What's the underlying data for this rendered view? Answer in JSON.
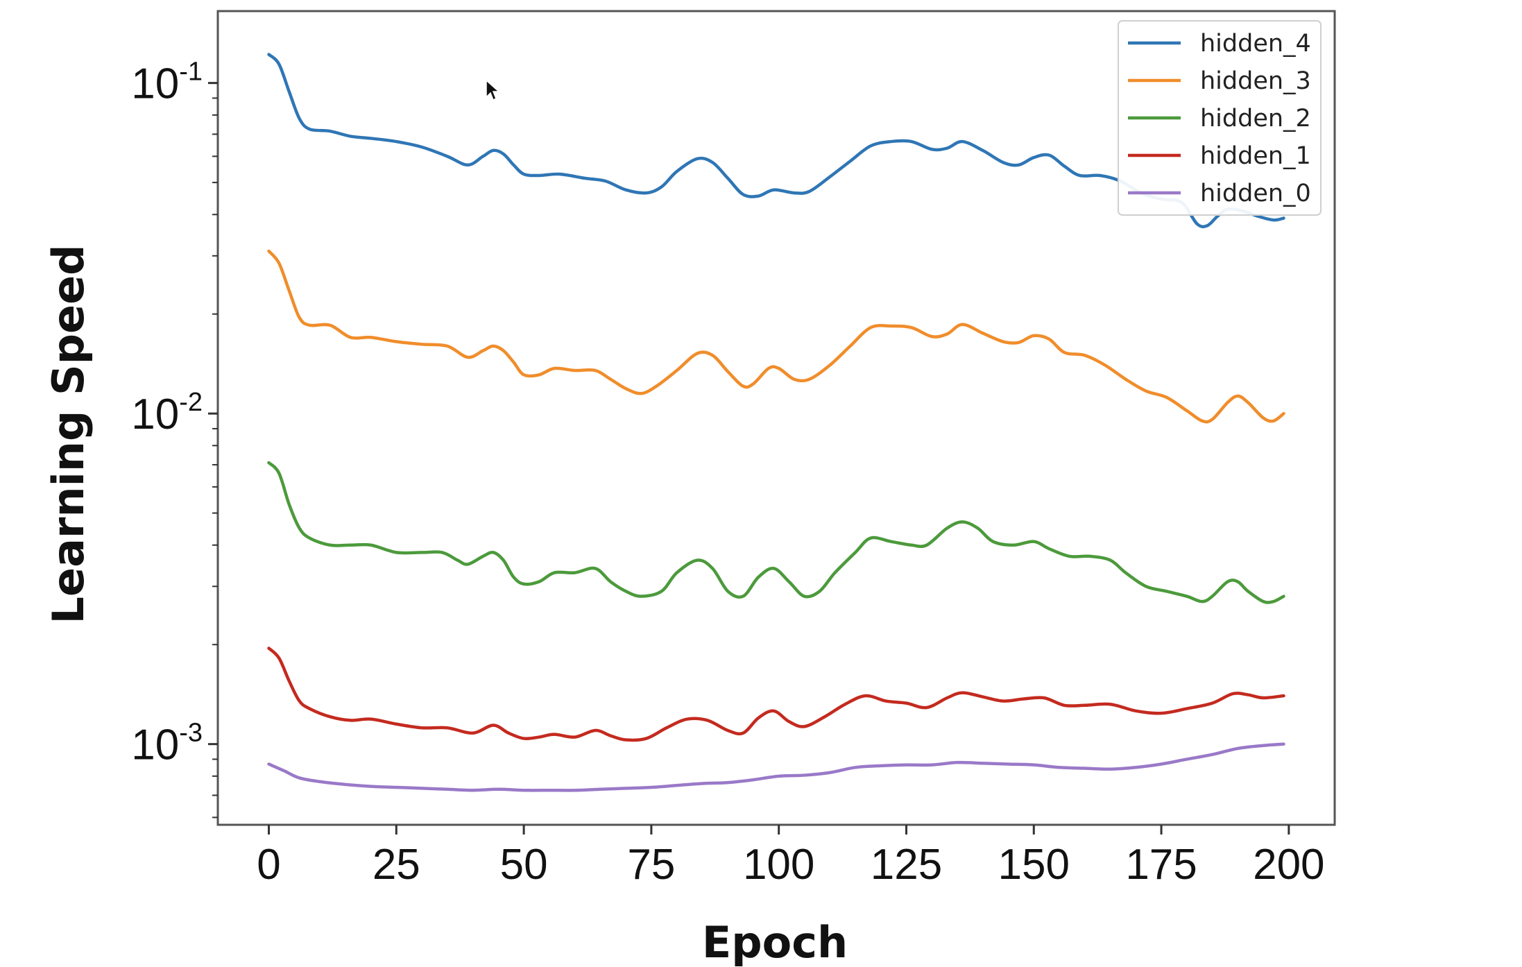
{
  "chart_data": {
    "type": "line",
    "xlabel": "Epoch",
    "ylabel": "Learning Speed",
    "xlim": [
      -10,
      209
    ],
    "ylim": [
      0.00057,
      0.165
    ],
    "yscale": "log",
    "x_ticks": [
      0,
      25,
      50,
      75,
      100,
      125,
      150,
      175,
      200
    ],
    "x_tick_labels": [
      "0",
      "25",
      "50",
      "75",
      "100",
      "125",
      "150",
      "175",
      "200"
    ],
    "y_ticks": [
      {
        "value": 0.1,
        "base": "10",
        "exp": "-1"
      },
      {
        "value": 0.01,
        "base": "10",
        "exp": "-2"
      },
      {
        "value": 0.001,
        "base": "10",
        "exp": "-3"
      }
    ],
    "legend_position": "top-right",
    "grid": false,
    "cursor_visible": true,
    "series": [
      {
        "name": "hidden_4",
        "color": "#2f76b5",
        "points": [
          [
            0,
            0.122
          ],
          [
            2,
            0.114
          ],
          [
            4,
            0.094
          ],
          [
            6,
            0.078
          ],
          [
            8,
            0.0725
          ],
          [
            12,
            0.0715
          ],
          [
            16,
            0.069
          ],
          [
            20,
            0.068
          ],
          [
            25,
            0.0665
          ],
          [
            30,
            0.064
          ],
          [
            35,
            0.06
          ],
          [
            39,
            0.0565
          ],
          [
            42,
            0.06
          ],
          [
            44,
            0.0625
          ],
          [
            46,
            0.061
          ],
          [
            48,
            0.0565
          ],
          [
            50,
            0.053
          ],
          [
            53,
            0.0525
          ],
          [
            57,
            0.053
          ],
          [
            62,
            0.0515
          ],
          [
            66,
            0.0505
          ],
          [
            70,
            0.0475
          ],
          [
            74,
            0.0465
          ],
          [
            77,
            0.0485
          ],
          [
            80,
            0.054
          ],
          [
            84,
            0.059
          ],
          [
            87,
            0.0575
          ],
          [
            90,
            0.0515
          ],
          [
            93,
            0.046
          ],
          [
            96,
            0.0455
          ],
          [
            99,
            0.0475
          ],
          [
            103,
            0.0465
          ],
          [
            106,
            0.047
          ],
          [
            110,
            0.052
          ],
          [
            114,
            0.058
          ],
          [
            118,
            0.0645
          ],
          [
            122,
            0.0665
          ],
          [
            126,
            0.0665
          ],
          [
            130,
            0.063
          ],
          [
            133,
            0.0635
          ],
          [
            136,
            0.0665
          ],
          [
            140,
            0.0625
          ],
          [
            144,
            0.0575
          ],
          [
            147,
            0.0565
          ],
          [
            150,
            0.0595
          ],
          [
            153,
            0.0605
          ],
          [
            156,
            0.056
          ],
          [
            159,
            0.0525
          ],
          [
            163,
            0.0525
          ],
          [
            167,
            0.0505
          ],
          [
            171,
            0.0465
          ],
          [
            175,
            0.0445
          ],
          [
            179,
            0.0435
          ],
          [
            182,
            0.0375
          ],
          [
            184,
            0.037
          ],
          [
            186,
            0.0395
          ],
          [
            188,
            0.0415
          ],
          [
            191,
            0.041
          ],
          [
            194,
            0.0395
          ],
          [
            197,
            0.0385
          ],
          [
            199,
            0.039
          ]
        ]
      },
      {
        "name": "hidden_3",
        "color": "#f08d2b",
        "points": [
          [
            0,
            0.031
          ],
          [
            2,
            0.0285
          ],
          [
            4,
            0.0235
          ],
          [
            6,
            0.0195
          ],
          [
            8,
            0.0185
          ],
          [
            12,
            0.0185
          ],
          [
            16,
            0.017
          ],
          [
            20,
            0.017
          ],
          [
            25,
            0.0165
          ],
          [
            30,
            0.0162
          ],
          [
            35,
            0.016
          ],
          [
            39,
            0.0148
          ],
          [
            42,
            0.0155
          ],
          [
            44,
            0.016
          ],
          [
            46,
            0.0155
          ],
          [
            48,
            0.0143
          ],
          [
            50,
            0.0131
          ],
          [
            53,
            0.0131
          ],
          [
            56,
            0.0137
          ],
          [
            60,
            0.0135
          ],
          [
            64,
            0.0135
          ],
          [
            67,
            0.0127
          ],
          [
            70,
            0.0119
          ],
          [
            73,
            0.0115
          ],
          [
            76,
            0.0121
          ],
          [
            80,
            0.0135
          ],
          [
            84,
            0.0152
          ],
          [
            87,
            0.015
          ],
          [
            90,
            0.0134
          ],
          [
            93,
            0.0121
          ],
          [
            95,
            0.0123
          ],
          [
            98,
            0.0137
          ],
          [
            100,
            0.0137
          ],
          [
            103,
            0.0127
          ],
          [
            106,
            0.0127
          ],
          [
            110,
            0.014
          ],
          [
            114,
            0.016
          ],
          [
            118,
            0.0182
          ],
          [
            122,
            0.0184
          ],
          [
            126,
            0.0182
          ],
          [
            130,
            0.0171
          ],
          [
            133,
            0.0174
          ],
          [
            136,
            0.0186
          ],
          [
            140,
            0.0175
          ],
          [
            144,
            0.0165
          ],
          [
            147,
            0.0164
          ],
          [
            150,
            0.0172
          ],
          [
            153,
            0.0168
          ],
          [
            156,
            0.0153
          ],
          [
            160,
            0.015
          ],
          [
            164,
            0.014
          ],
          [
            168,
            0.0127
          ],
          [
            172,
            0.0117
          ],
          [
            176,
            0.0112
          ],
          [
            180,
            0.0102
          ],
          [
            183,
            0.0095
          ],
          [
            185,
            0.0096
          ],
          [
            188,
            0.0108
          ],
          [
            190,
            0.0113
          ],
          [
            192,
            0.0108
          ],
          [
            195,
            0.0097
          ],
          [
            197,
            0.0095
          ],
          [
            199,
            0.01
          ]
        ]
      },
      {
        "name": "hidden_2",
        "color": "#4c9a3c",
        "points": [
          [
            0,
            0.0071
          ],
          [
            2,
            0.0066
          ],
          [
            4,
            0.0053
          ],
          [
            6,
            0.0045
          ],
          [
            8,
            0.0042
          ],
          [
            12,
            0.004
          ],
          [
            16,
            0.004
          ],
          [
            20,
            0.004
          ],
          [
            25,
            0.0038
          ],
          [
            30,
            0.0038
          ],
          [
            34,
            0.0038
          ],
          [
            37,
            0.0036
          ],
          [
            39,
            0.0035
          ],
          [
            42,
            0.0037
          ],
          [
            44,
            0.0038
          ],
          [
            46,
            0.0036
          ],
          [
            48,
            0.0032
          ],
          [
            50,
            0.00305
          ],
          [
            53,
            0.0031
          ],
          [
            56,
            0.0033
          ],
          [
            60,
            0.0033
          ],
          [
            64,
            0.0034
          ],
          [
            67,
            0.0031
          ],
          [
            70,
            0.0029
          ],
          [
            73,
            0.0028
          ],
          [
            77,
            0.0029
          ],
          [
            80,
            0.0033
          ],
          [
            84,
            0.0036
          ],
          [
            87,
            0.0034
          ],
          [
            90,
            0.0029
          ],
          [
            93,
            0.0028
          ],
          [
            96,
            0.0032
          ],
          [
            99,
            0.0034
          ],
          [
            102,
            0.0031
          ],
          [
            105,
            0.0028
          ],
          [
            108,
            0.0029
          ],
          [
            111,
            0.0033
          ],
          [
            115,
            0.0038
          ],
          [
            118,
            0.0042
          ],
          [
            122,
            0.0041
          ],
          [
            126,
            0.004
          ],
          [
            129,
            0.004
          ],
          [
            133,
            0.0045
          ],
          [
            136,
            0.0047
          ],
          [
            139,
            0.0045
          ],
          [
            142,
            0.0041
          ],
          [
            146,
            0.004
          ],
          [
            150,
            0.0041
          ],
          [
            153,
            0.0039
          ],
          [
            157,
            0.0037
          ],
          [
            161,
            0.0037
          ],
          [
            165,
            0.0036
          ],
          [
            168,
            0.0033
          ],
          [
            172,
            0.003
          ],
          [
            176,
            0.0029
          ],
          [
            180,
            0.0028
          ],
          [
            183,
            0.0027
          ],
          [
            185,
            0.0028
          ],
          [
            188,
            0.0031
          ],
          [
            190,
            0.0031
          ],
          [
            192,
            0.0029
          ],
          [
            195,
            0.0027
          ],
          [
            197,
            0.0027
          ],
          [
            199,
            0.0028
          ]
        ]
      },
      {
        "name": "hidden_1",
        "color": "#c42a1f",
        "points": [
          [
            0,
            0.00195
          ],
          [
            2,
            0.00182
          ],
          [
            4,
            0.00155
          ],
          [
            6,
            0.00135
          ],
          [
            8,
            0.00128
          ],
          [
            12,
            0.00121
          ],
          [
            16,
            0.00118
          ],
          [
            20,
            0.00119
          ],
          [
            25,
            0.00115
          ],
          [
            30,
            0.00112
          ],
          [
            35,
            0.00112
          ],
          [
            40,
            0.00108
          ],
          [
            44,
            0.00114
          ],
          [
            47,
            0.00108
          ],
          [
            50,
            0.00104
          ],
          [
            53,
            0.00105
          ],
          [
            56,
            0.00107
          ],
          [
            60,
            0.00105
          ],
          [
            64,
            0.0011
          ],
          [
            67,
            0.00106
          ],
          [
            70,
            0.00103
          ],
          [
            74,
            0.00104
          ],
          [
            78,
            0.00112
          ],
          [
            82,
            0.00119
          ],
          [
            86,
            0.00118
          ],
          [
            90,
            0.0011
          ],
          [
            93,
            0.00108
          ],
          [
            96,
            0.0012
          ],
          [
            99,
            0.00126
          ],
          [
            102,
            0.00117
          ],
          [
            105,
            0.00113
          ],
          [
            109,
            0.00121
          ],
          [
            113,
            0.00132
          ],
          [
            117,
            0.0014
          ],
          [
            121,
            0.00135
          ],
          [
            125,
            0.00133
          ],
          [
            129,
            0.00129
          ],
          [
            133,
            0.00138
          ],
          [
            136,
            0.00143
          ],
          [
            140,
            0.00139
          ],
          [
            144,
            0.00135
          ],
          [
            148,
            0.00137
          ],
          [
            152,
            0.00138
          ],
          [
            156,
            0.00131
          ],
          [
            160,
            0.00131
          ],
          [
            165,
            0.00132
          ],
          [
            170,
            0.00126
          ],
          [
            175,
            0.00124
          ],
          [
            180,
            0.00128
          ],
          [
            185,
            0.00133
          ],
          [
            189,
            0.00142
          ],
          [
            192,
            0.00141
          ],
          [
            195,
            0.00138
          ],
          [
            199,
            0.0014
          ]
        ]
      },
      {
        "name": "hidden_0",
        "color": "#9a79c8",
        "points": [
          [
            0,
            0.00087
          ],
          [
            3,
            0.00083
          ],
          [
            6,
            0.00079
          ],
          [
            10,
            0.00077
          ],
          [
            15,
            0.000755
          ],
          [
            20,
            0.000745
          ],
          [
            25,
            0.00074
          ],
          [
            30,
            0.000735
          ],
          [
            35,
            0.00073
          ],
          [
            40,
            0.000725
          ],
          [
            45,
            0.00073
          ],
          [
            50,
            0.000725
          ],
          [
            55,
            0.000725
          ],
          [
            60,
            0.000725
          ],
          [
            65,
            0.00073
          ],
          [
            70,
            0.000735
          ],
          [
            75,
            0.00074
          ],
          [
            80,
            0.00075
          ],
          [
            85,
            0.00076
          ],
          [
            90,
            0.000765
          ],
          [
            95,
            0.00078
          ],
          [
            100,
            0.0008
          ],
          [
            105,
            0.000805
          ],
          [
            110,
            0.00082
          ],
          [
            115,
            0.00085
          ],
          [
            120,
            0.00086
          ],
          [
            125,
            0.000865
          ],
          [
            130,
            0.000865
          ],
          [
            135,
            0.00088
          ],
          [
            140,
            0.000875
          ],
          [
            145,
            0.00087
          ],
          [
            150,
            0.000865
          ],
          [
            155,
            0.00085
          ],
          [
            160,
            0.000845
          ],
          [
            165,
            0.00084
          ],
          [
            170,
            0.00085
          ],
          [
            175,
            0.00087
          ],
          [
            180,
            0.0009
          ],
          [
            185,
            0.00093
          ],
          [
            190,
            0.00097
          ],
          [
            195,
            0.00099
          ],
          [
            199,
            0.001
          ]
        ]
      }
    ]
  }
}
